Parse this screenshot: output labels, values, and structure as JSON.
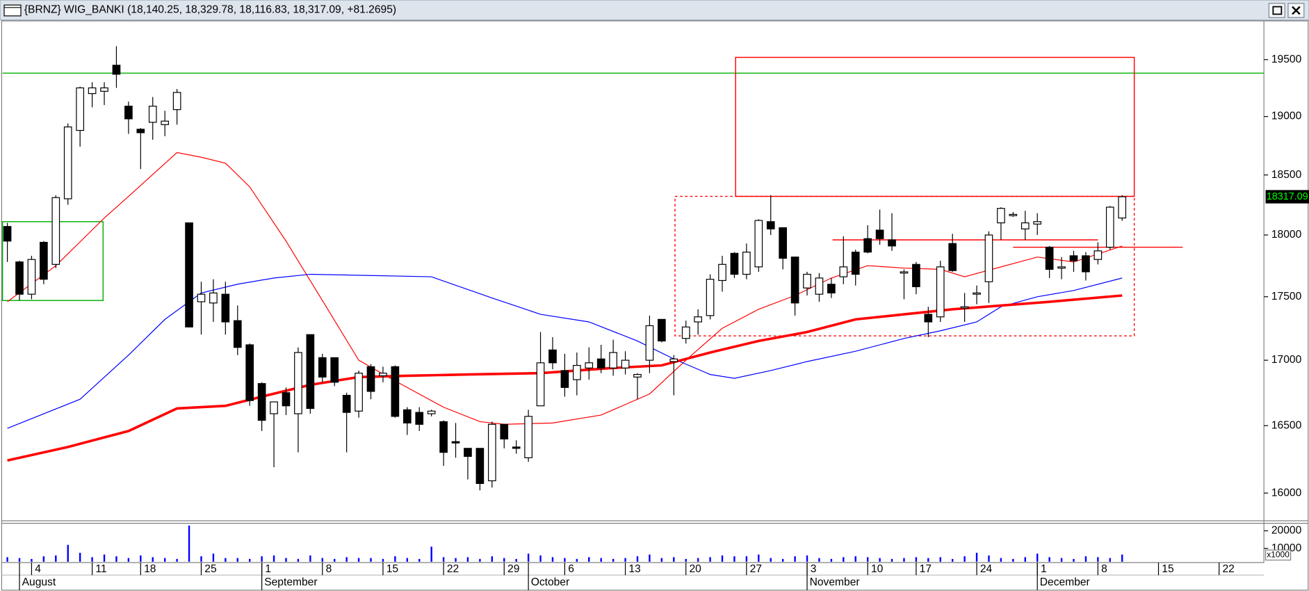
{
  "chart_data": [
    {
      "type": "candlestick",
      "title": "{BRNZ} WIG_BANKI (18,140.25, 18,329.78, 18,116.83, 18,317.09, +81.2695)",
      "x": [
        0,
        1,
        2,
        3,
        4,
        5,
        6,
        7,
        8,
        9,
        10,
        11,
        12,
        13,
        14,
        15,
        16,
        17,
        18,
        19,
        20,
        21,
        22,
        23,
        24,
        25,
        26,
        27,
        28,
        29,
        30,
        31,
        32,
        33,
        34,
        35,
        36,
        37,
        38,
        39,
        40,
        41,
        42,
        43,
        44,
        45,
        46,
        47,
        48,
        49,
        50,
        51,
        52,
        53,
        54,
        55,
        56,
        57,
        58,
        59,
        60,
        61,
        62,
        63,
        64,
        65,
        66,
        67,
        68,
        69,
        70,
        71,
        72,
        73,
        74,
        75,
        76,
        77,
        78,
        79,
        80,
        81,
        82,
        83,
        84,
        85,
        86,
        87,
        88,
        89,
        90,
        91,
        92
      ],
      "open": [
        18070,
        17780,
        17520,
        17940,
        17760,
        18300,
        18880,
        19200,
        19220,
        19450,
        19090,
        18890,
        18950,
        18930,
        19060,
        18100,
        17460,
        17450,
        17520,
        17310,
        17120,
        16820,
        16590,
        16750,
        16590,
        17200,
        17020,
        17020,
        16730,
        16610,
        16950,
        16880,
        16950,
        16620,
        16600,
        16590,
        16530,
        16380,
        16330,
        16330,
        16090,
        16510,
        16340,
        16260,
        16650,
        17080,
        16920,
        16850,
        16940,
        17010,
        16940,
        16940,
        16870,
        17000,
        17320,
        16990,
        17170,
        17300,
        17350,
        17630,
        17850,
        17680,
        17740,
        18110,
        18060,
        17820,
        17570,
        17520,
        17600,
        17660,
        17860,
        17970,
        18040,
        17960,
        17700,
        17760,
        17360,
        17340,
        17930,
        17410,
        17520,
        17620,
        18100,
        18170,
        18050,
        18090,
        17900,
        17730,
        17830,
        17830,
        17800,
        17900,
        18140.25
      ],
      "high": [
        18100,
        17790,
        17830,
        17950,
        18330,
        18940,
        19260,
        19300,
        19300,
        19620,
        19130,
        18900,
        19170,
        19050,
        19240,
        18100,
        17620,
        17640,
        17620,
        17430,
        17130,
        16830,
        16680,
        16790,
        17100,
        17200,
        17050,
        17020,
        16750,
        16920,
        16970,
        16950,
        16960,
        16640,
        16640,
        16620,
        16540,
        16520,
        16330,
        16330,
        16530,
        16510,
        16390,
        16620,
        17220,
        17180,
        17050,
        17060,
        17100,
        17120,
        17160,
        17070,
        16900,
        17350,
        17320,
        17040,
        17310,
        17400,
        17680,
        17830,
        17860,
        17930,
        18130,
        18330,
        18060,
        17820,
        17700,
        17690,
        17650,
        17990,
        17880,
        18080,
        18210,
        18180,
        17720,
        17780,
        17420,
        17790,
        18010,
        17530,
        17590,
        18030,
        18230,
        18190,
        18200,
        18180,
        17910,
        17820,
        17870,
        17860,
        17940,
        18240,
        18329.78
      ],
      "low": [
        17780,
        17470,
        17480,
        17600,
        17730,
        18250,
        18740,
        19080,
        19100,
        19250,
        18850,
        18550,
        18800,
        18830,
        18930,
        17260,
        17200,
        17300,
        17200,
        17040,
        16650,
        16460,
        16190,
        16580,
        16300,
        16590,
        16830,
        16800,
        16300,
        16560,
        16700,
        16830,
        16560,
        16430,
        16460,
        16570,
        16200,
        16260,
        16100,
        16020,
        16040,
        16330,
        16290,
        16230,
        16650,
        16930,
        16720,
        16730,
        16850,
        16900,
        16880,
        16890,
        16700,
        16900,
        17140,
        16730,
        17130,
        17200,
        17320,
        17540,
        17650,
        17640,
        17700,
        18000,
        17720,
        17350,
        17510,
        17460,
        17490,
        17600,
        17590,
        17850,
        17920,
        17870,
        17480,
        17520,
        17180,
        17300,
        17700,
        17300,
        17440,
        17450,
        17960,
        18150,
        17960,
        18000,
        17650,
        17640,
        17700,
        17630,
        17760,
        17880,
        18116.83
      ],
      "close": [
        17950,
        17520,
        17800,
        17640,
        18310,
        18910,
        19250,
        19250,
        19250,
        19370,
        18980,
        18860,
        19090,
        18960,
        19210,
        17260,
        17520,
        17530,
        17300,
        17100,
        16690,
        16540,
        16680,
        16650,
        17060,
        16630,
        16870,
        16830,
        16600,
        16900,
        16760,
        16900,
        16570,
        16520,
        16510,
        16610,
        16300,
        16370,
        16270,
        16070,
        16510,
        16400,
        16330,
        16570,
        16980,
        16980,
        16790,
        16960,
        16980,
        16940,
        17060,
        17000,
        16890,
        17270,
        17150,
        17010,
        17260,
        17340,
        17640,
        17760,
        17680,
        17860,
        18120,
        18050,
        17810,
        17450,
        17680,
        17650,
        17530,
        17740,
        17680,
        17860,
        17970,
        17910,
        17700,
        17580,
        17300,
        17740,
        17710,
        17420,
        17530,
        18000,
        18220,
        18170,
        18100,
        18110,
        17720,
        17740,
        17790,
        17700,
        17870,
        18230,
        18317.09
      ],
      "up_color": "#ffffff",
      "down_color": "#000000",
      "xlim": [
        -0.4,
        103.7
      ],
      "ylim": [
        15805,
        19840
      ],
      "log_y": true,
      "yticks": [
        16000,
        16500,
        17000,
        17500,
        18000,
        18500,
        19000,
        19500
      ],
      "xticks": [
        {
          "value": 2,
          "label": "4"
        },
        {
          "value": 7,
          "label": "11"
        },
        {
          "value": 11,
          "label": "18"
        },
        {
          "value": 16,
          "label": "25"
        },
        {
          "value": 21,
          "label": "1"
        },
        {
          "value": 26,
          "label": "8"
        },
        {
          "value": 31,
          "label": "15"
        },
        {
          "value": 36,
          "label": "22"
        },
        {
          "value": 41,
          "label": "29"
        },
        {
          "value": 46,
          "label": "6"
        },
        {
          "value": 51,
          "label": "13"
        },
        {
          "value": 56,
          "label": "20"
        },
        {
          "value": 61,
          "label": "27"
        },
        {
          "value": 66,
          "label": "3"
        },
        {
          "value": 71,
          "label": "10"
        },
        {
          "value": 75,
          "label": "17"
        },
        {
          "value": 80,
          "label": "24"
        },
        {
          "value": 85,
          "label": "1"
        },
        {
          "value": 90,
          "label": "8"
        },
        {
          "value": 95,
          "label": "15"
        },
        {
          "value": 100,
          "label": "22"
        }
      ],
      "month_ticks": [
        {
          "value": 1,
          "label": "August"
        },
        {
          "value": 21,
          "label": "September"
        },
        {
          "value": 43,
          "label": "October"
        },
        {
          "value": 66,
          "label": "November"
        },
        {
          "value": 85,
          "label": "December"
        }
      ],
      "lines": [
        {
          "color": "#ff0000",
          "width": 1,
          "x": [
            0,
            4,
            8,
            10,
            14,
            16,
            18,
            20,
            23,
            26,
            29,
            32,
            36,
            39,
            41,
            45,
            49,
            53,
            56,
            59,
            62,
            65,
            68,
            71,
            74,
            77,
            79,
            82,
            85,
            88,
            92
          ],
          "values": [
            17460,
            17750,
            18140,
            18320,
            18690,
            18650,
            18600,
            18400,
            17950,
            17470,
            17000,
            16840,
            16640,
            16530,
            16510,
            16520,
            16580,
            16740,
            17000,
            17250,
            17400,
            17510,
            17650,
            17750,
            17730,
            17720,
            17660,
            17740,
            17820,
            17780,
            17910
          ]
        },
        {
          "color": "#0000ff",
          "width": 1,
          "x": [
            0,
            6,
            10,
            13,
            16,
            19,
            22,
            25,
            30,
            35,
            40,
            44,
            48,
            52,
            55,
            58,
            60,
            63,
            66,
            70,
            74,
            77,
            80,
            82,
            85,
            88,
            92
          ],
          "values": [
            16480,
            16700,
            17040,
            17320,
            17530,
            17600,
            17650,
            17680,
            17670,
            17660,
            17490,
            17360,
            17300,
            17150,
            17010,
            16890,
            16860,
            16920,
            16990,
            17070,
            17170,
            17230,
            17300,
            17420,
            17500,
            17550,
            17650
          ]
        },
        {
          "color": "#ff0000",
          "width": 3,
          "x": [
            0,
            5,
            10,
            14,
            18,
            21,
            25,
            29,
            33,
            38,
            44,
            50,
            54,
            58,
            62,
            66,
            70,
            74,
            78,
            82,
            86,
            92
          ],
          "values": [
            16240,
            16340,
            16460,
            16630,
            16650,
            16720,
            16810,
            16870,
            16880,
            16890,
            16900,
            16940,
            16960,
            17060,
            17150,
            17220,
            17320,
            17360,
            17400,
            17430,
            17460,
            17510
          ]
        }
      ],
      "hlines": [
        {
          "value": 19380,
          "color": "#00b000"
        }
      ],
      "rects": [
        {
          "x": [
            -0.4,
            7.9
          ],
          "y": [
            17470,
            18110
          ],
          "color": "#00b000",
          "style": "solid"
        },
        {
          "x": [
            60.1,
            93
          ],
          "y": [
            18320,
            19520
          ],
          "color": "#ff0000",
          "style": "solid"
        },
        {
          "x": [
            55.1,
            93
          ],
          "y": [
            17190,
            18320
          ],
          "color": "#ff0000",
          "style": "dashed"
        }
      ],
      "segments": [
        {
          "x": [
            68.1,
            90
          ],
          "y": 17960,
          "color": "#ff0000"
        },
        {
          "x": [
            83,
            97
          ],
          "y": 17900,
          "color": "#ff0000"
        }
      ]
    },
    {
      "type": "bar",
      "x": [
        0,
        1,
        2,
        3,
        4,
        5,
        6,
        7,
        8,
        9,
        10,
        11,
        12,
        13,
        14,
        15,
        16,
        17,
        18,
        19,
        20,
        21,
        22,
        23,
        24,
        25,
        26,
        27,
        28,
        29,
        30,
        31,
        32,
        33,
        34,
        35,
        36,
        37,
        38,
        39,
        40,
        41,
        42,
        43,
        44,
        45,
        46,
        47,
        48,
        49,
        50,
        51,
        52,
        53,
        54,
        55,
        56,
        57,
        58,
        59,
        60,
        61,
        62,
        63,
        64,
        65,
        66,
        67,
        68,
        69,
        70,
        71,
        72,
        73,
        74,
        75,
        76,
        77,
        78,
        79,
        80,
        81,
        82,
        83,
        84,
        85,
        86,
        87,
        88,
        89,
        90,
        91,
        92
      ],
      "values": [
        5000,
        4500,
        4000,
        5500,
        6000,
        12000,
        7500,
        5000,
        6500,
        5500,
        4500,
        6000,
        5000,
        4500,
        4000,
        23000,
        5500,
        7000,
        4500,
        4500,
        4000,
        5500,
        6000,
        4500,
        4000,
        6000,
        4500,
        4000,
        5000,
        4500,
        4500,
        4000,
        5500,
        4500,
        4000,
        11000,
        5000,
        4500,
        5000,
        4000,
        5500,
        4500,
        4000,
        7000,
        6000,
        5000,
        4500,
        4000,
        5000,
        4500,
        4000,
        4500,
        5500,
        6500,
        4500,
        5000,
        4000,
        4500,
        5000,
        6000,
        5500,
        5500,
        6500,
        4500,
        4000,
        5500,
        6000,
        4500,
        4000,
        5000,
        5500,
        5000,
        4500,
        4000,
        4500,
        5000,
        4500,
        5000,
        4000,
        5500,
        7500,
        6000,
        4500,
        4000,
        5000,
        7000,
        5000,
        4500,
        4000,
        5500,
        5000,
        4500,
        6500
      ],
      "color": "#0000ff",
      "xlim": [
        -0.4,
        103.7
      ],
      "ylim": [
        2400,
        23800
      ],
      "yticks": [
        10000,
        20000
      ],
      "unit_label": "x1000"
    }
  ]
}
